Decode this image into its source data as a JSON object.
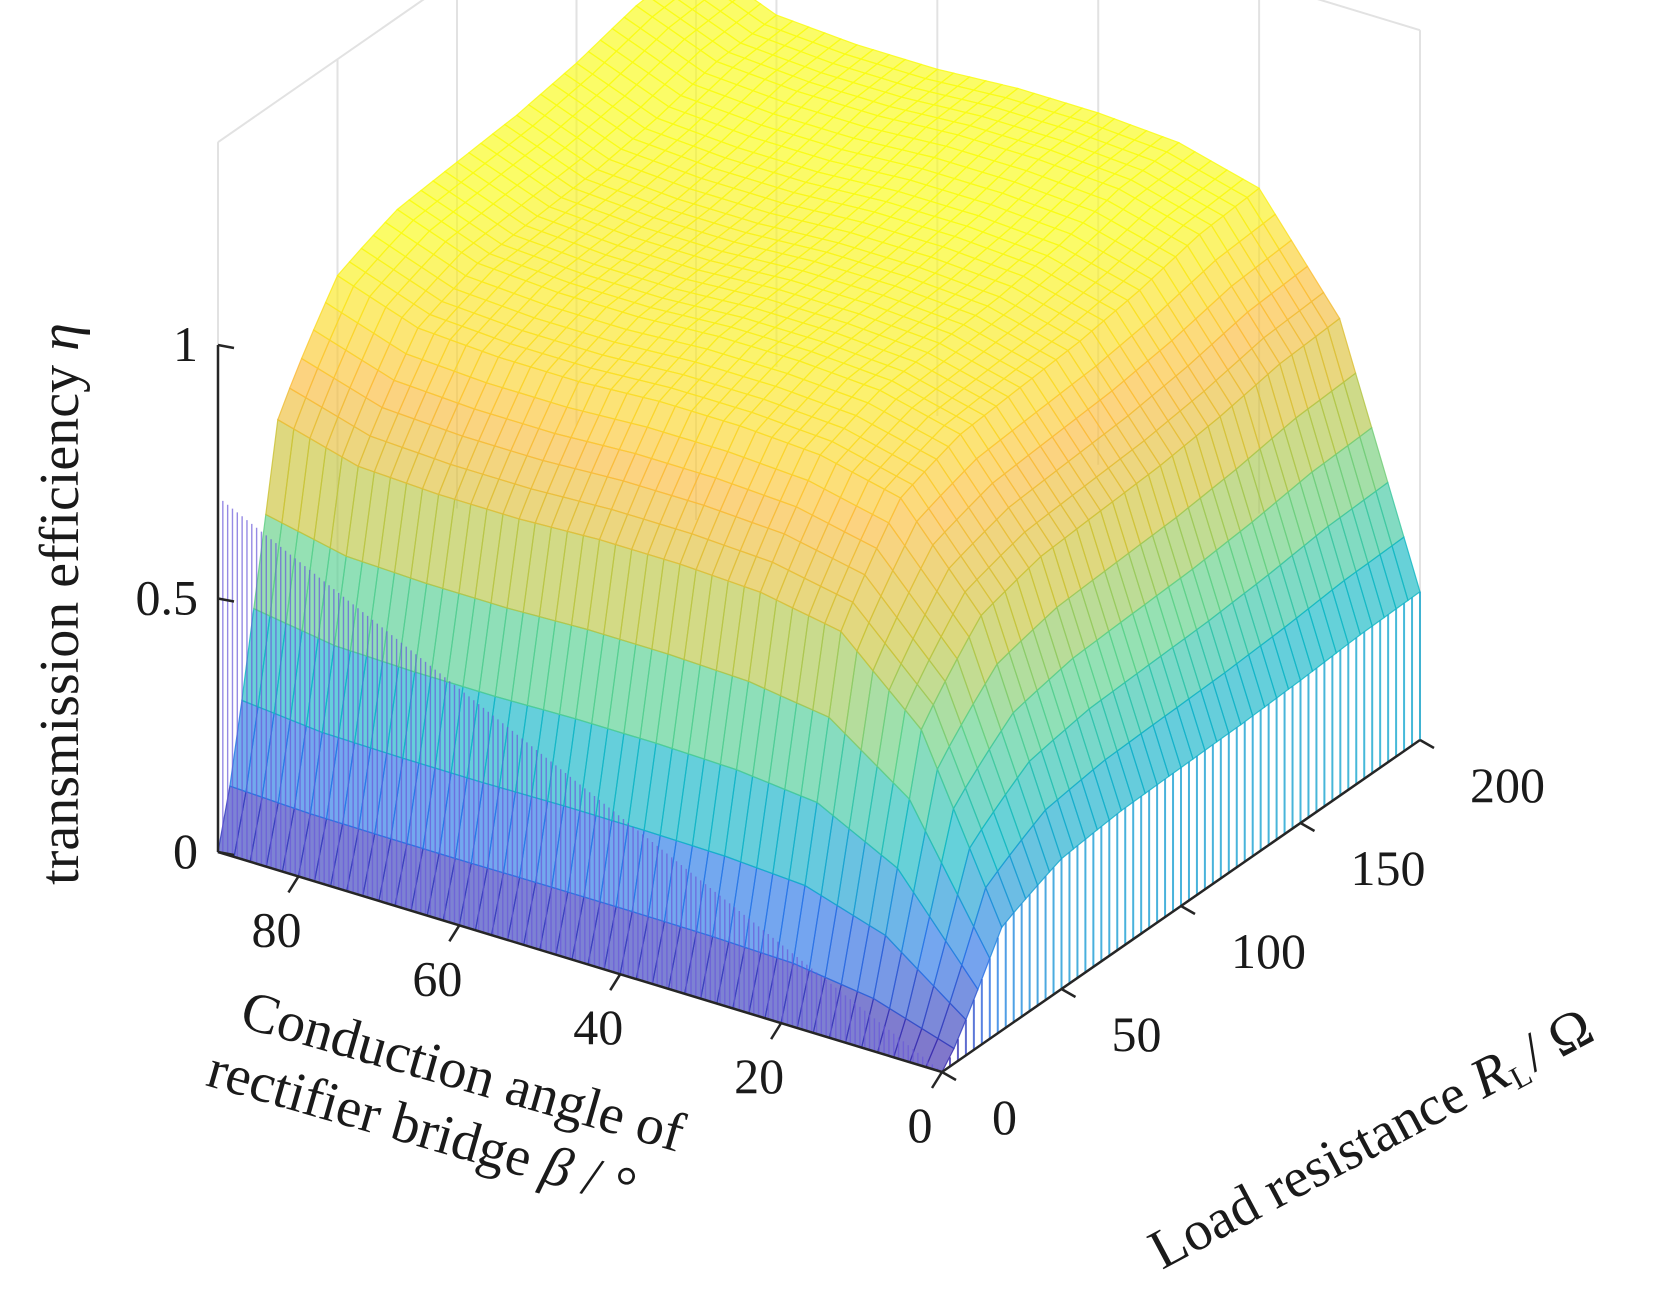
{
  "chart_data": {
    "type": "surface3d",
    "colormap": [
      "#3e26a8",
      "#2a75e8",
      "#12b8c6",
      "#5bd18c",
      "#c9c43a",
      "#fbbc3c",
      "#f9fb15"
    ],
    "surface_alpha": 0.65,
    "grid": true,
    "axes": {
      "x": {
        "label_line1": "Conduction angle of",
        "label_line2_prefix": "rectifier bridge ",
        "label_symbol": "β",
        "label_suffix": " / °",
        "range": [
          0,
          90
        ],
        "ticks": [
          0,
          20,
          40,
          60,
          80
        ],
        "tick_labels": [
          "0",
          "20",
          "40",
          "60",
          "80"
        ]
      },
      "y": {
        "label_prefix": "Load resistance ",
        "label_symbol": "R",
        "label_subscript": "L",
        "label_suffix": "/ Ω",
        "range": [
          0,
          200
        ],
        "ticks": [
          0,
          50,
          100,
          150,
          200
        ],
        "tick_labels": [
          "0",
          "50",
          "100",
          "150",
          "200"
        ]
      },
      "z": {
        "label_prefix": "transmission efficiency ",
        "label_symbol": "η",
        "range": [
          0,
          1
        ],
        "ticks": [
          0,
          0.5,
          1
        ],
        "tick_labels": [
          "0",
          "0.5",
          "1"
        ]
      }
    },
    "surface_samples": {
      "beta_deg": [
        0,
        10,
        20,
        30,
        40,
        50,
        60,
        70,
        80,
        90
      ],
      "load_ohm": [
        0,
        25,
        50,
        75,
        100,
        125,
        150,
        175,
        200
      ],
      "eta_at_max_load_vs_beta": [
        0.28,
        0.75,
        0.95,
        0.99,
        1.0,
        1.0,
        0.99,
        0.99,
        1.0,
        1.06
      ],
      "eta_at_max_beta_vs_load": [
        0.0,
        0.78,
        0.94,
        0.98,
        0.99,
        1.0,
        1.02,
        1.05,
        1.06
      ]
    }
  }
}
